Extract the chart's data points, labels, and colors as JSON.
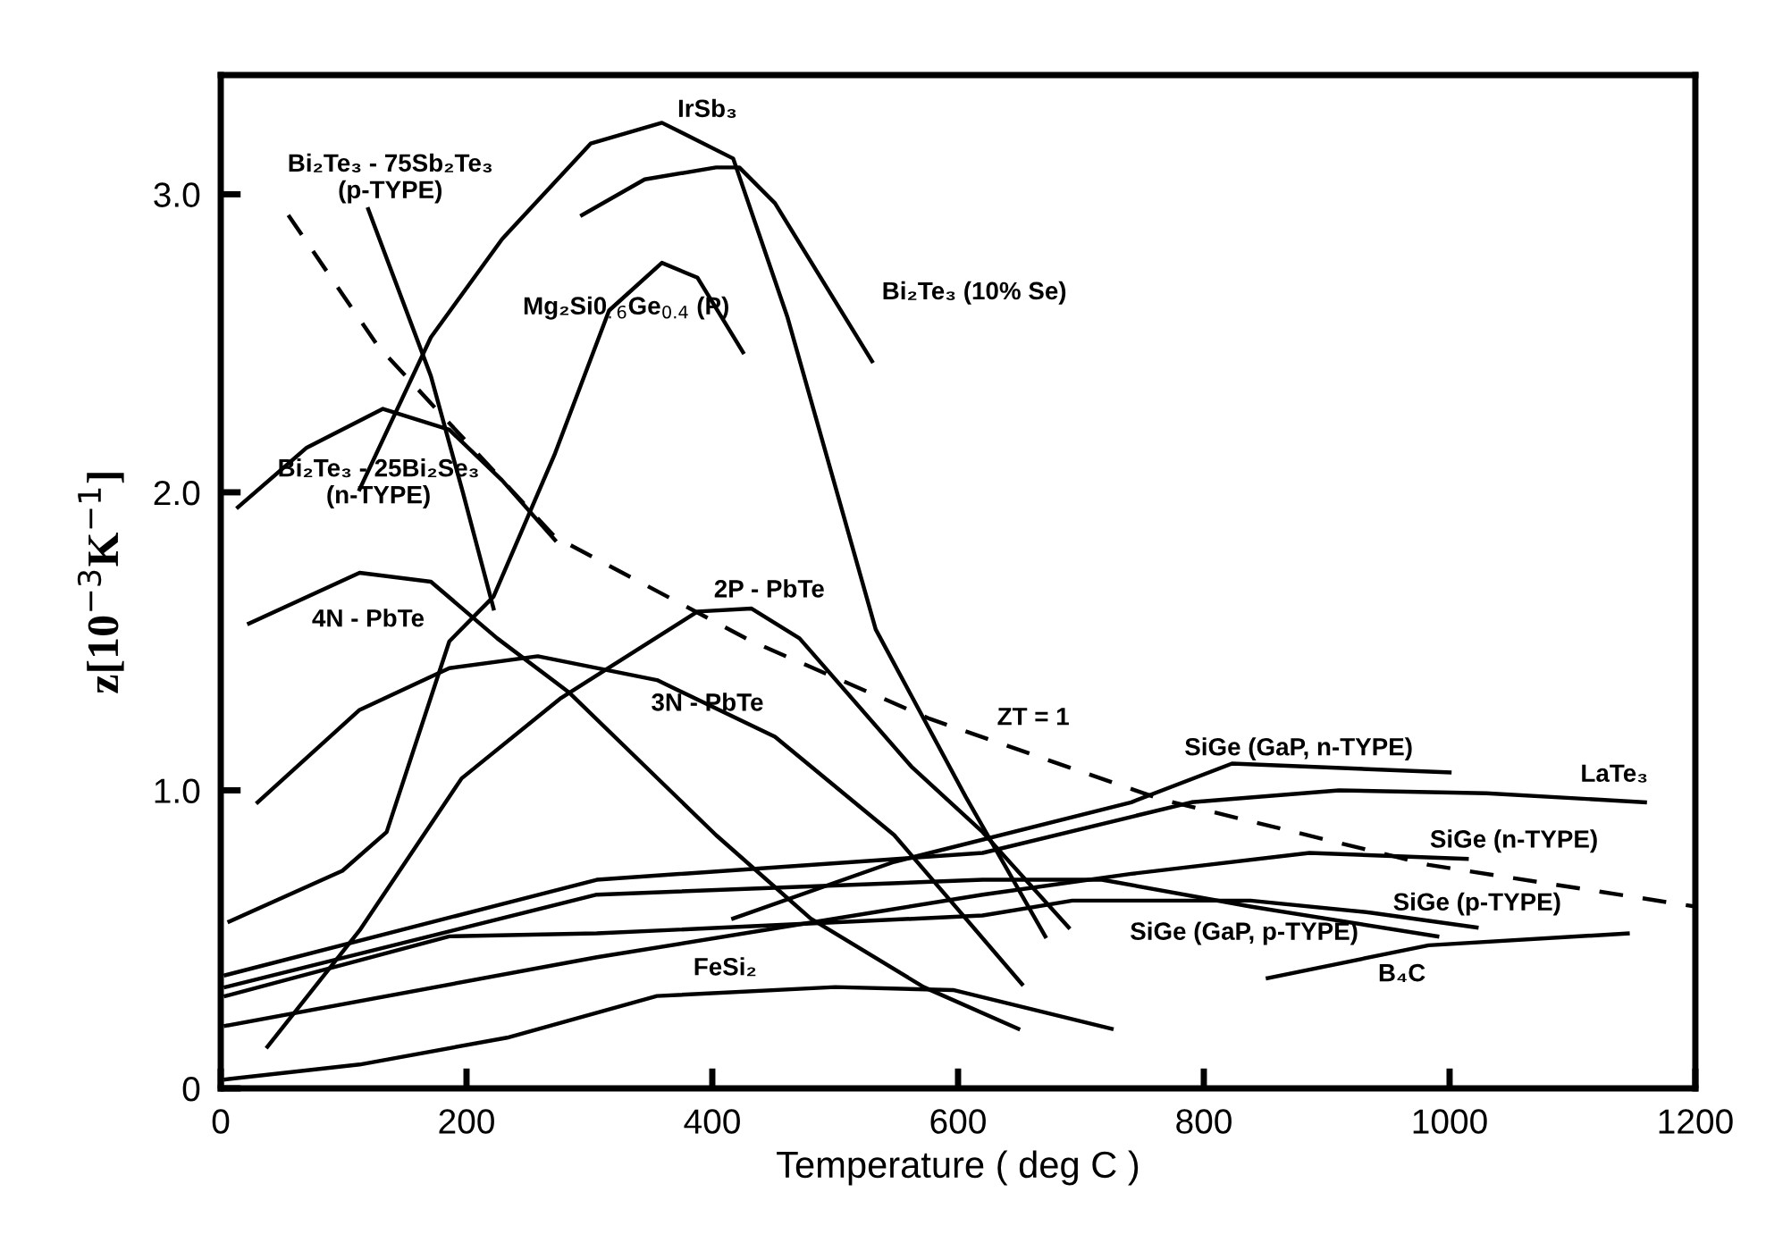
{
  "chart_data": {
    "type": "line",
    "xlabel": "Temperature ( deg C )",
    "ylabel": "z[10$^{−3}$K$^{−1}$]",
    "xlim": [
      0,
      1200
    ],
    "xticks": [
      0,
      200,
      400,
      600,
      800,
      1000,
      1200
    ],
    "ylim": [
      0,
      3.4
    ],
    "yticks": [
      0,
      {
        "value": 1,
        "label": "1.0"
      },
      {
        "value": 2,
        "label": "2.0"
      },
      {
        "value": 3,
        "label": "3.0"
      }
    ],
    "grid": false,
    "legend": false,
    "marker": "none",
    "series": [
      {
        "name": "Bi₂Te₃ - 75Sb₂Te₃\n(p-TYPE)",
        "color": "#000000",
        "x": [
          120,
          171,
          197,
          222
        ],
        "values": [
          2.95,
          2.39,
          2.0,
          1.61
        ]
      },
      {
        "name": "ZT = 1",
        "color": "#000000",
        "line_style": "dashed",
        "x": [
          55,
          128,
          272,
          432,
          577,
          765,
          983,
          1200
        ],
        "values": [
          2.93,
          2.49,
          1.85,
          1.5,
          1.24,
          0.97,
          0.75,
          0.61
        ]
      },
      {
        "name": "IrSb₃",
        "color": "#000000",
        "x": [
          113,
          171,
          229,
          301,
          359,
          417,
          461,
          533,
          606,
          671
        ],
        "values": [
          2.01,
          2.52,
          2.85,
          3.17,
          3.24,
          3.12,
          2.59,
          1.54,
          0.98,
          0.51
        ]
      },
      {
        "name": "Mg₂Si0$_{.6}$Ge$_{0.4}$ (P)",
        "color": "#000000",
        "x": [
          7,
          99,
          135,
          186,
          222,
          272,
          316,
          359,
          388,
          425
        ],
        "values": [
          0.56,
          0.73,
          0.86,
          1.5,
          1.65,
          2.13,
          2.61,
          2.77,
          2.72,
          2.47
        ]
      },
      {
        "name": "Bi₂Te₃ (10% Se)",
        "color": "#000000",
        "x": [
          294,
          345,
          403,
          422,
          451,
          530
        ],
        "values": [
          2.93,
          3.05,
          3.09,
          3.09,
          2.97,
          2.44
        ]
      },
      {
        "name": "Bi₂Te₃ - 25Bi₂Se₃\n(n-TYPE)",
        "color": "#000000",
        "x": [
          14,
          70,
          132,
          186,
          229,
          272
        ],
        "values": [
          1.95,
          2.15,
          2.28,
          2.21,
          2.04,
          1.84
        ]
      },
      {
        "name": "4N - PbTe",
        "color": "#000000",
        "x": [
          23,
          113,
          171,
          225,
          283,
          403,
          480,
          572,
          649
        ],
        "values": [
          1.56,
          1.73,
          1.7,
          1.51,
          1.33,
          0.85,
          0.57,
          0.34,
          0.2
        ]
      },
      {
        "name": "3N - PbTe",
        "color": "#000000",
        "x": [
          30,
          113,
          186,
          258,
          355,
          451,
          548,
          652
        ],
        "values": [
          0.96,
          1.27,
          1.41,
          1.45,
          1.37,
          1.18,
          0.85,
          0.35
        ]
      },
      {
        "name": "2P - PbTe",
        "color": "#000000",
        "x": [
          38,
          113,
          196,
          277,
          388,
          432,
          471,
          562,
          620,
          690
        ],
        "values": [
          0.14,
          0.53,
          1.04,
          1.31,
          1.6,
          1.61,
          1.51,
          1.08,
          0.86,
          0.54
        ]
      },
      {
        "name": "FeSi₂",
        "color": "#000000",
        "x": [
          4,
          113,
          233,
          355,
          500,
          596,
          725
        ],
        "values": [
          0.03,
          0.08,
          0.17,
          0.31,
          0.34,
          0.33,
          0.2
        ]
      },
      {
        "name": "SiGe (n-TYPE)",
        "color": "#000000",
        "x": [
          4,
          306,
          620,
          741,
          886,
          1014
        ],
        "values": [
          0.21,
          0.44,
          0.65,
          0.72,
          0.79,
          0.77
        ]
      },
      {
        "name": "SiGe (p-TYPE)",
        "color": "#000000",
        "x": [
          4,
          186,
          306,
          620,
          693,
          838,
          935,
          1022
        ],
        "values": [
          0.31,
          0.51,
          0.52,
          0.58,
          0.63,
          0.63,
          0.59,
          0.54
        ]
      },
      {
        "name": "LaTe₃",
        "color": "#000000",
        "x": [
          4,
          306,
          620,
          790,
          910,
          1030,
          1159
        ],
        "values": [
          0.38,
          0.7,
          0.79,
          0.96,
          1.0,
          0.99,
          0.96
        ]
      },
      {
        "name": "SiGe (GaP, p-TYPE)",
        "color": "#000000",
        "x": [
          4,
          306,
          620,
          717,
          838,
          990
        ],
        "values": [
          0.34,
          0.65,
          0.7,
          0.7,
          0.61,
          0.51
        ]
      },
      {
        "name": "SiGe (GaP, n-TYPE)",
        "color": "#000000",
        "x": [
          417,
          548,
          741,
          823,
          1000
        ],
        "values": [
          0.57,
          0.76,
          0.96,
          1.09,
          1.06
        ]
      },
      {
        "name": "B₄C",
        "color": "#000000",
        "x": [
          852,
          983,
          1145
        ],
        "values": [
          0.37,
          0.48,
          0.52
        ]
      }
    ]
  }
}
